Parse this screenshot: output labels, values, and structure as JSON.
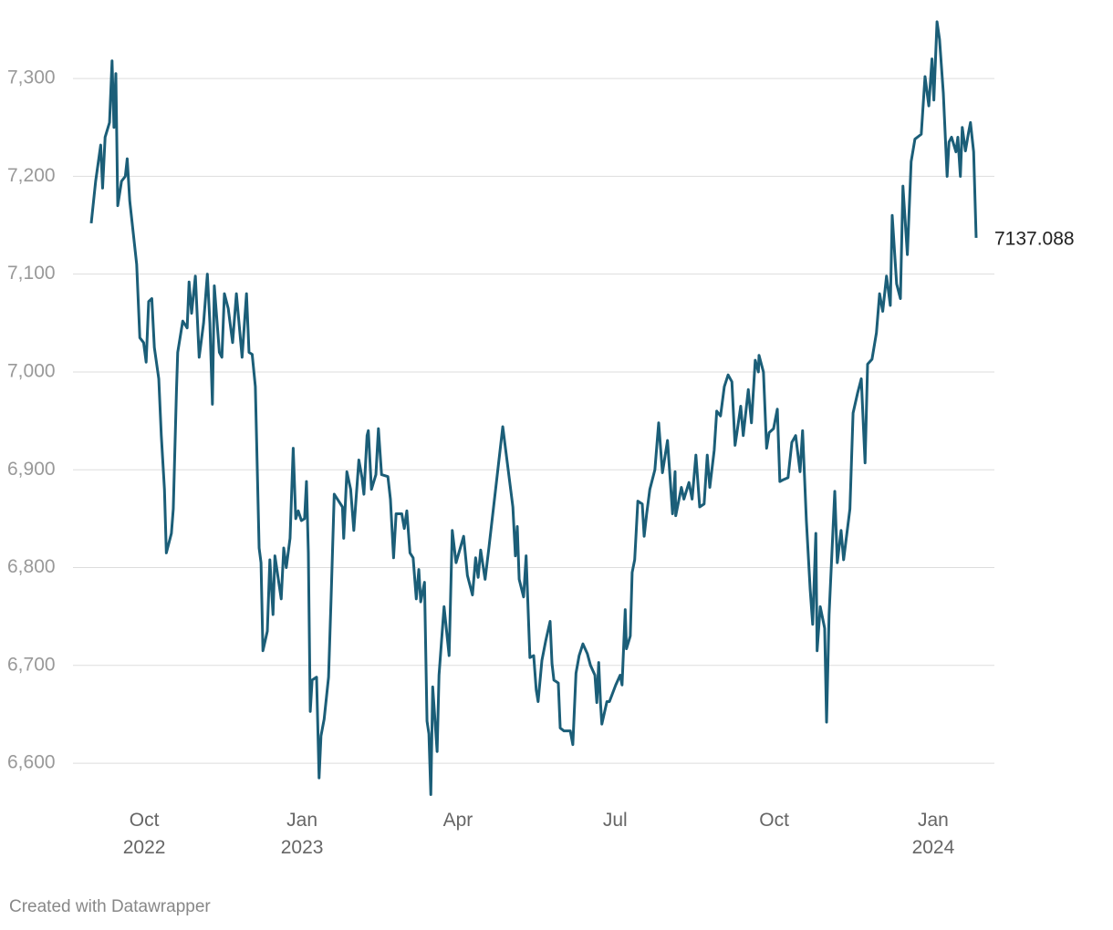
{
  "chart_data": {
    "type": "line",
    "x": [
      2022.666,
      2022.673,
      2022.681,
      2022.684,
      2022.688,
      2022.695,
      2022.699,
      2022.702,
      2022.705,
      2022.708,
      2022.714,
      2022.72,
      2022.723,
      2022.727,
      2022.738,
      2022.743,
      2022.749,
      2022.753,
      2022.757,
      2022.762,
      2022.766,
      2022.773,
      2022.777,
      2022.782,
      2022.785,
      2022.793,
      2022.796,
      2022.801,
      2022.803,
      2022.811,
      2022.818,
      2022.821,
      2022.825,
      2022.831,
      2022.837,
      2022.844,
      2022.85,
      2022.854,
      2022.858,
      2022.861,
      2022.869,
      2022.873,
      2022.877,
      2022.883,
      2022.89,
      2022.896,
      2022.905,
      2022.912,
      2022.916,
      2022.921,
      2022.926,
      2022.932,
      2022.935,
      2022.938,
      2022.945,
      2022.949,
      2022.954,
      2022.957,
      2022.962,
      2022.967,
      2022.971,
      2022.975,
      2022.981,
      2022.986,
      2022.99,
      2022.994,
      2022.999,
      2023.004,
      2023.007,
      2023.01,
      2023.013,
      2023.016,
      2023.023,
      2023.027,
      2023.03,
      2023.035,
      2023.042,
      2023.046,
      2023.051,
      2023.058,
      2023.064,
      2023.066,
      2023.071,
      2023.077,
      2023.082,
      2023.09,
      2023.095,
      2023.098,
      2023.103,
      2023.105,
      2023.11,
      2023.117,
      2023.121,
      2023.126,
      2023.136,
      2023.14,
      2023.145,
      2023.149,
      2023.158,
      2023.162,
      2023.166,
      2023.171,
      2023.176,
      2023.181,
      2023.185,
      2023.188,
      2023.194,
      2023.198,
      2023.201,
      2023.204,
      2023.207,
      2023.214,
      2023.217,
      2023.225,
      2023.233,
      2023.238,
      2023.244,
      2023.256,
      2023.262,
      2023.27,
      2023.275,
      2023.279,
      2023.283,
      2023.29,
      2023.296,
      2023.318,
      2023.334,
      2023.338,
      2023.341,
      2023.344,
      2023.351,
      2023.355,
      2023.361,
      2023.367,
      2023.371,
      2023.374,
      2023.38,
      2023.386,
      2023.393,
      2023.396,
      2023.399,
      2023.406,
      2023.409,
      2023.415,
      2023.425,
      2023.429,
      2023.434,
      2023.439,
      2023.445,
      2023.452,
      2023.457,
      2023.464,
      2023.467,
      2023.47,
      2023.473,
      2023.475,
      2023.483,
      2023.487,
      2023.497,
      2023.504,
      2023.507,
      2023.512,
      2023.514,
      2023.52,
      2023.523,
      2023.527,
      2023.532,
      2023.539,
      2023.542,
      2023.546,
      2023.551,
      2023.559,
      2023.565,
      2023.571,
      2023.579,
      2023.587,
      2023.591,
      2023.592,
      2023.601,
      2023.605,
      2023.613,
      2023.618,
      2023.624,
      2023.63,
      2023.637,
      2023.642,
      2023.646,
      2023.653,
      2023.657,
      2023.663,
      2023.669,
      2023.675,
      2023.681,
      2023.686,
      2023.689,
      2023.695,
      2023.699,
      2023.707,
      2023.712,
      2023.718,
      2023.723,
      2023.724,
      2023.731,
      2023.736,
      2023.74,
      2023.747,
      2023.753,
      2023.757,
      2023.763,
      2023.77,
      2023.776,
      2023.782,
      2023.789,
      2023.793,
      2023.799,
      2023.805,
      2023.809,
      2023.814,
      2023.816,
      2023.821,
      2023.828,
      2023.831,
      2023.835,
      2023.844,
      2023.848,
      2023.854,
      2023.858,
      2023.868,
      2023.873,
      2023.88,
      2023.886,
      2023.892,
      2023.896,
      2023.903,
      2023.91,
      2023.915,
      2023.92,
      2023.926,
      2023.932,
      2023.935,
      2023.942,
      2023.948,
      2023.952,
      2023.959,
      2023.965,
      2023.971,
      2023.981,
      2023.987,
      2023.993,
      2023.998,
      2024.001,
      2024.006,
      2024.01,
      2024.016,
      2024.022,
      2024.025,
      2024.029,
      2024.036,
      2024.039,
      2024.043,
      2024.046,
      2024.051,
      2024.056,
      2024.059,
      2024.064,
      2024.068
    ],
    "values": [
      7152,
      7195,
      7232,
      7188,
      7240,
      7255,
      7318,
      7250,
      7305,
      7170,
      7195,
      7200,
      7218,
      7175,
      7110,
      7035,
      7030,
      7010,
      7072,
      7075,
      7025,
      6993,
      6935,
      6880,
      6815,
      6835,
      6860,
      6980,
      7020,
      7052,
      7045,
      7092,
      7060,
      7098,
      7015,
      7050,
      7100,
      7050,
      6967,
      7088,
      7020,
      7015,
      7080,
      7065,
      7030,
      7080,
      7015,
      7080,
      7020,
      7018,
      6985,
      6820,
      6805,
      6715,
      6735,
      6808,
      6752,
      6812,
      6790,
      6768,
      6820,
      6800,
      6830,
      6922,
      6850,
      6858,
      6848,
      6850,
      6888,
      6815,
      6653,
      6685,
      6688,
      6585,
      6628,
      6645,
      6688,
      6768,
      6875,
      6868,
      6862,
      6830,
      6898,
      6880,
      6838,
      6910,
      6892,
      6875,
      6935,
      6940,
      6880,
      6895,
      6942,
      6895,
      6893,
      6870,
      6810,
      6855,
      6855,
      6840,
      6858,
      6815,
      6810,
      6768,
      6798,
      6765,
      6785,
      6643,
      6630,
      6568,
      6678,
      6612,
      6690,
      6760,
      6710,
      6838,
      6805,
      6832,
      6792,
      6772,
      6810,
      6790,
      6818,
      6788,
      6820,
      6944,
      6862,
      6812,
      6842,
      6788,
      6770,
      6812,
      6708,
      6710,
      6675,
      6663,
      6705,
      6725,
      6745,
      6702,
      6685,
      6682,
      6636,
      6633,
      6633,
      6619,
      6692,
      6710,
      6722,
      6712,
      6700,
      6690,
      6662,
      6703,
      6660,
      6640,
      6663,
      6663,
      6680,
      6690,
      6680,
      6757,
      6717,
      6730,
      6795,
      6808,
      6868,
      6865,
      6832,
      6855,
      6880,
      6900,
      6948,
      6897,
      6930,
      6855,
      6898,
      6853,
      6882,
      6870,
      6887,
      6870,
      6915,
      6862,
      6865,
      6915,
      6882,
      6920,
      6960,
      6955,
      6985,
      6997,
      6990,
      6925,
      6938,
      6965,
      6935,
      6982,
      6948,
      7012,
      7000,
      7017,
      7000,
      6922,
      6938,
      6942,
      6962,
      6888,
      6890,
      6892,
      6928,
      6935,
      6898,
      6940,
      6848,
      6778,
      6742,
      6835,
      6715,
      6760,
      6738,
      6642,
      6752,
      6878,
      6805,
      6838,
      6808,
      6860,
      6958,
      6978,
      6993,
      6907,
      7008,
      7013,
      7040,
      7080,
      7062,
      7098,
      7068,
      7160,
      7090,
      7075,
      7190,
      7120,
      7215,
      7238,
      7243,
      7302,
      7272,
      7320,
      7278,
      7358,
      7340,
      7285,
      7200,
      7235,
      7240,
      7225,
      7240,
      7200,
      7250,
      7226,
      7245,
      7255,
      7225,
      7137.088
    ],
    "color": "#1b5e78",
    "xlim": [
      2022.666,
      2024.068
    ],
    "xticks": [
      {
        "value": 2022.75,
        "label": "Oct 2022"
      },
      {
        "value": 2023,
        "label": "Jan 2023"
      },
      {
        "value": 2023.247,
        "label": "Apr"
      },
      {
        "value": 2023.496,
        "label": "Jul"
      },
      {
        "value": 2023.748,
        "label": "Oct"
      },
      {
        "value": 2024,
        "label": "Jan 2024"
      }
    ],
    "ylim": [
      6560,
      7370
    ],
    "yticks": [
      {
        "value": 6600,
        "label": "6,600"
      },
      {
        "value": 6700,
        "label": "6,700"
      },
      {
        "value": 6800,
        "label": "6,800"
      },
      {
        "value": 6900,
        "label": "6,900"
      },
      {
        "value": 7000,
        "label": "7,000"
      },
      {
        "value": 7100,
        "label": "7,100"
      },
      {
        "value": 7200,
        "label": "7,200"
      },
      {
        "value": 7300,
        "label": "7,300"
      }
    ],
    "grid": true
  },
  "footer": "Created with Datawrapper"
}
